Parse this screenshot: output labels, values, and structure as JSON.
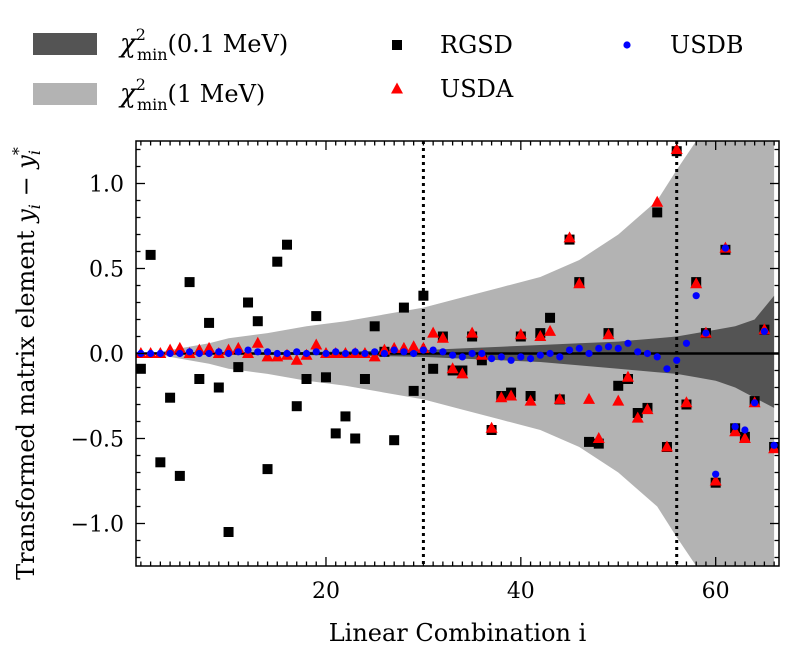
{
  "chart_data": {
    "type": "scatter",
    "title": "",
    "xlabel": "Linear Combination i",
    "ylabel": "Transformed matrix element y_i − y_i*",
    "xlim": [
      0.5,
      66.5
    ],
    "ylim": [
      -1.25,
      1.25
    ],
    "xticks": [
      20,
      40,
      60
    ],
    "xtick_labels": [
      "20",
      "40",
      "60"
    ],
    "yticks": [
      -1.0,
      -0.5,
      0.0,
      0.5,
      1.0
    ],
    "ytick_labels": [
      "−1.0",
      "−0.5",
      "0.0",
      "0.5",
      "1.0"
    ],
    "vlines": [
      30,
      56
    ],
    "hline": 0,
    "legend": {
      "position": "top",
      "entries": [
        {
          "key": "band_dark",
          "base": "χ",
          "sup": "2",
          "sub": "min",
          "tail": "(0.1 MeV)"
        },
        {
          "key": "band_light",
          "base": "χ",
          "sup": "2",
          "sub": "min",
          "tail": "(1 MeV)"
        },
        {
          "key": "RGSD",
          "label": "RGSD"
        },
        {
          "key": "USDA",
          "label": "USDA"
        },
        {
          "key": "USDB",
          "label": "USDB"
        }
      ]
    },
    "bands": [
      {
        "name": "χ²min(1 MeV)",
        "color": "#b3b3b3",
        "x": [
          1,
          3,
          5,
          8,
          10,
          14,
          18,
          22,
          26,
          30,
          34,
          38,
          42,
          46,
          50,
          54,
          56,
          58,
          60,
          62,
          64,
          66
        ],
        "upper": [
          0.003,
          0.01,
          0.03,
          0.06,
          0.09,
          0.12,
          0.16,
          0.19,
          0.23,
          0.27,
          0.33,
          0.39,
          0.45,
          0.55,
          0.7,
          0.9,
          1.08,
          1.25,
          1.25,
          1.25,
          1.25,
          1.25
        ],
        "lower": [
          -0.003,
          -0.01,
          -0.03,
          -0.06,
          -0.09,
          -0.12,
          -0.16,
          -0.19,
          -0.23,
          -0.27,
          -0.33,
          -0.39,
          -0.45,
          -0.55,
          -0.7,
          -0.9,
          -1.08,
          -1.25,
          -1.25,
          -1.25,
          -1.25,
          -1.25
        ]
      },
      {
        "name": "χ²min(0.1 MeV)",
        "color": "#545454",
        "x": [
          1,
          10,
          20,
          30,
          34,
          38,
          42,
          46,
          50,
          54,
          56,
          58,
          60,
          62,
          64,
          66
        ],
        "upper": [
          0.001,
          0.005,
          0.01,
          0.02,
          0.03,
          0.04,
          0.05,
          0.06,
          0.07,
          0.09,
          0.1,
          0.12,
          0.14,
          0.16,
          0.2,
          0.34
        ],
        "lower": [
          -0.001,
          -0.005,
          -0.01,
          -0.02,
          -0.03,
          -0.04,
          -0.05,
          -0.07,
          -0.09,
          -0.11,
          -0.12,
          -0.14,
          -0.16,
          -0.2,
          -0.26,
          -0.32
        ]
      }
    ],
    "series": [
      {
        "name": "RGSD",
        "marker": "square",
        "color": "#000000",
        "x": [
          1,
          2,
          3,
          4,
          5,
          6,
          7,
          8,
          9,
          10,
          11,
          12,
          13,
          14,
          15,
          16,
          17,
          18,
          19,
          20,
          21,
          22,
          23,
          24,
          25,
          26,
          27,
          28,
          29,
          30,
          31,
          32,
          33,
          34,
          35,
          36,
          37,
          38,
          39,
          40,
          41,
          42,
          43,
          44,
          45,
          46,
          47,
          48,
          49,
          50,
          51,
          52,
          53,
          54,
          55,
          56,
          57,
          58,
          59,
          60,
          61,
          62,
          63,
          64,
          65,
          66
        ],
        "y": [
          -0.09,
          0.58,
          -0.64,
          -0.26,
          -0.72,
          0.42,
          -0.15,
          0.18,
          -0.2,
          -1.05,
          -0.08,
          0.3,
          0.19,
          -0.68,
          0.54,
          0.64,
          -0.31,
          -0.15,
          0.22,
          -0.14,
          -0.47,
          -0.37,
          -0.5,
          -0.15,
          0.16,
          0.01,
          -0.51,
          0.27,
          -0.22,
          0.34,
          -0.09,
          0.1,
          -0.1,
          -0.1,
          0.1,
          -0.04,
          -0.45,
          -0.25,
          -0.23,
          0.1,
          -0.25,
          0.12,
          0.21,
          -0.27,
          0.67,
          0.42,
          -0.52,
          -0.53,
          0.12,
          -0.19,
          -0.15,
          -0.35,
          -0.32,
          0.83,
          -0.55,
          1.19,
          -0.3,
          0.42,
          0.12,
          -0.76,
          0.61,
          -0.44,
          -0.49,
          -0.28,
          0.14,
          -0.55
        ]
      },
      {
        "name": "USDA",
        "marker": "triangle",
        "color": "#ff0000",
        "x": [
          1,
          2,
          3,
          4,
          5,
          6,
          7,
          8,
          9,
          10,
          11,
          12,
          13,
          14,
          15,
          16,
          17,
          18,
          19,
          20,
          21,
          22,
          23,
          24,
          25,
          26,
          27,
          28,
          29,
          30,
          31,
          32,
          33,
          34,
          35,
          36,
          37,
          38,
          39,
          40,
          41,
          42,
          43,
          44,
          45,
          46,
          47,
          48,
          49,
          50,
          51,
          52,
          53,
          54,
          55,
          56,
          57,
          58,
          59,
          60,
          61,
          62,
          63,
          64,
          65,
          66
        ],
        "y": [
          0.0,
          0.0,
          0.0,
          0.02,
          0.03,
          0.0,
          0.02,
          0.03,
          0.0,
          0.02,
          0.03,
          0.0,
          0.06,
          -0.02,
          -0.02,
          -0.01,
          -0.04,
          -0.01,
          0.05,
          0.0,
          0.0,
          0.0,
          0.0,
          0.0,
          -0.02,
          0.02,
          0.03,
          0.03,
          0.04,
          0.03,
          0.12,
          0.09,
          -0.09,
          -0.12,
          0.12,
          -0.01,
          -0.44,
          -0.26,
          -0.25,
          0.11,
          -0.28,
          0.1,
          0.13,
          -0.27,
          0.68,
          0.41,
          -0.27,
          -0.5,
          0.11,
          -0.28,
          -0.14,
          -0.38,
          -0.33,
          0.89,
          -0.55,
          1.2,
          -0.29,
          0.41,
          0.12,
          -0.75,
          0.62,
          -0.46,
          -0.5,
          -0.29,
          0.14,
          -0.56
        ]
      },
      {
        "name": "USDB",
        "marker": "circle",
        "color": "#0000ff",
        "x": [
          1,
          2,
          3,
          4,
          5,
          6,
          7,
          8,
          9,
          10,
          11,
          12,
          13,
          14,
          15,
          16,
          17,
          18,
          19,
          20,
          21,
          22,
          23,
          24,
          25,
          26,
          27,
          28,
          29,
          30,
          31,
          32,
          33,
          34,
          35,
          36,
          37,
          38,
          39,
          40,
          41,
          42,
          43,
          44,
          45,
          46,
          47,
          48,
          49,
          50,
          51,
          52,
          53,
          54,
          55,
          56,
          57,
          58,
          59,
          60,
          61,
          62,
          63,
          64,
          65,
          66
        ],
        "y": [
          0.0,
          0.0,
          0.0,
          0.0,
          0.0,
          0.01,
          0.0,
          0.0,
          0.01,
          0.0,
          0.01,
          0.02,
          0.01,
          0.01,
          0.0,
          0.0,
          0.01,
          0.0,
          0.01,
          0.0,
          0.01,
          0.0,
          0.01,
          0.0,
          0.01,
          0.0,
          0.02,
          0.01,
          0.0,
          0.02,
          0.02,
          0.01,
          -0.01,
          -0.02,
          0.0,
          0.0,
          -0.03,
          -0.02,
          -0.04,
          -0.02,
          -0.03,
          -0.01,
          0.0,
          -0.02,
          0.02,
          0.03,
          0.0,
          0.03,
          0.04,
          0.03,
          0.06,
          0.01,
          0.0,
          -0.02,
          -0.09,
          -0.04,
          0.06,
          0.34,
          0.12,
          -0.71,
          0.62,
          -0.43,
          -0.45,
          -0.29,
          0.13,
          -0.54
        ]
      }
    ]
  }
}
